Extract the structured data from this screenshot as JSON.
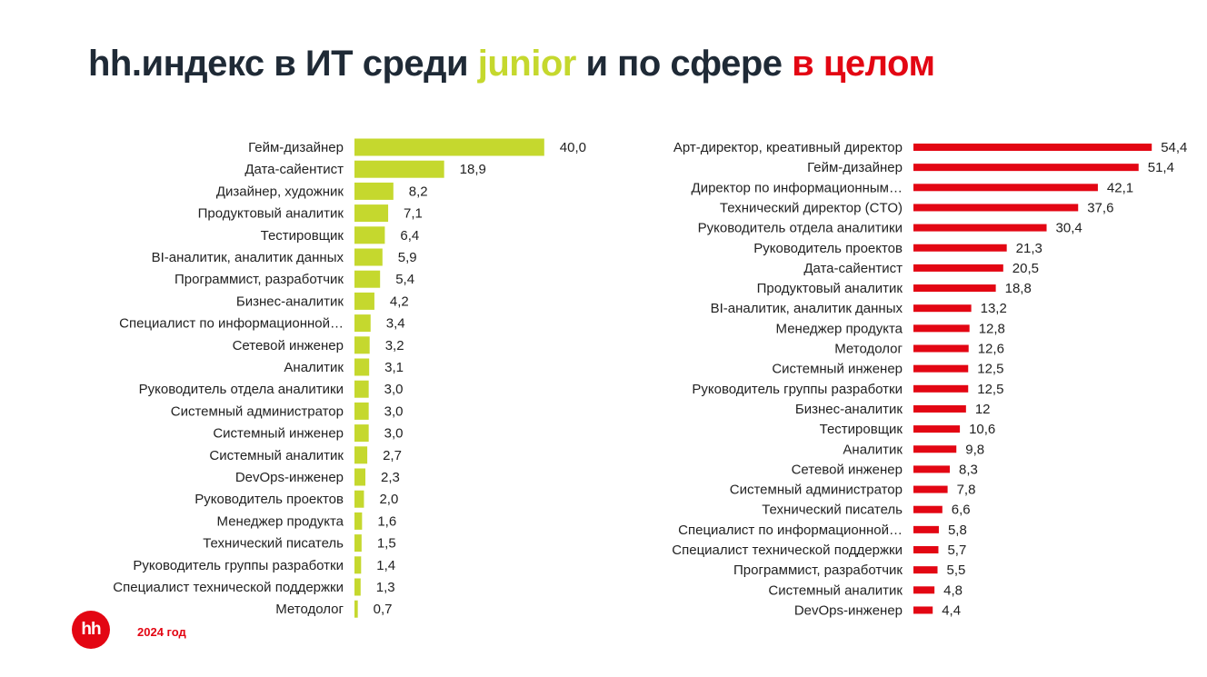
{
  "title": {
    "part1": "hh.индекс в ИТ среди ",
    "part2": "junior",
    "part3": " и по сфере ",
    "part4": "в целом"
  },
  "colors": {
    "junior": "#c5d82e",
    "whole": "#e30613",
    "title": "#1f2a36"
  },
  "footer": {
    "logo_text": "hh",
    "year": "2024 год"
  },
  "chart_data": [
    {
      "type": "bar",
      "orientation": "horizontal",
      "color": "#c5d82e",
      "categories": [
        "Гейм-дизайнер",
        "Дата-сайентист",
        "Дизайнер, художник",
        "Продуктовый аналитик",
        "Тестировщик",
        "BI-аналитик, аналитик данных",
        "Программист, разработчик",
        "Бизнес-аналитик",
        "Специалист по информационной…",
        "Сетевой инженер",
        "Аналитик",
        "Руководитель отдела аналитики",
        "Системный администратор",
        "Системный инженер",
        "Системный аналитик",
        "DevOps-инженер",
        "Руководитель проектов",
        "Менеджер продукта",
        "Технический писатель",
        "Руководитель группы разработки",
        "Специалист технической поддержки",
        "Методолог"
      ],
      "values": [
        40.0,
        18.9,
        8.2,
        7.1,
        6.4,
        5.9,
        5.4,
        4.2,
        3.4,
        3.2,
        3.1,
        3.0,
        3.0,
        3.0,
        2.7,
        2.3,
        2.0,
        1.6,
        1.5,
        1.4,
        1.3,
        0.7
      ],
      "value_labels": [
        "40,0",
        "18,9",
        "8,2",
        "7,1",
        "6,4",
        "5,9",
        "5,4",
        "4,2",
        "3,4",
        "3,2",
        "3,1",
        "3,0",
        "3,0",
        "3,0",
        "2,7",
        "2,3",
        "2,0",
        "1,6",
        "1,5",
        "1,4",
        "1,3",
        "0,7"
      ]
    },
    {
      "type": "bar",
      "orientation": "horizontal",
      "color": "#e30613",
      "categories": [
        "Арт-директор, креативный директор",
        "Гейм-дизайнер",
        "Директор по информационным…",
        "Технический директор (CTO)",
        "Руководитель отдела аналитики",
        "Руководитель проектов",
        "Дата-сайентист",
        "Продуктовый аналитик",
        "BI-аналитик, аналитик данных",
        "Менеджер продукта",
        "Методолог",
        "Системный инженер",
        "Руководитель группы разработки",
        "Бизнес-аналитик",
        "Тестировщик",
        "Аналитик",
        "Сетевой инженер",
        "Системный администратор",
        "Технический писатель",
        "Специалист по информационной…",
        "Специалист технической поддержки",
        "Программист, разработчик",
        "Системный аналитик",
        "DevOps-инженер"
      ],
      "values": [
        54.4,
        51.4,
        42.1,
        37.6,
        30.4,
        21.3,
        20.5,
        18.8,
        13.2,
        12.8,
        12.6,
        12.5,
        12.5,
        12,
        10.6,
        9.8,
        8.3,
        7.8,
        6.6,
        5.8,
        5.7,
        5.5,
        4.8,
        4.4
      ],
      "value_labels": [
        "54,4",
        "51,4",
        "42,1",
        "37,6",
        "30,4",
        "21,3",
        "20,5",
        "18,8",
        "13,2",
        "12,8",
        "12,6",
        "12,5",
        "12,5",
        "12",
        "10,6",
        "9,8",
        "8,3",
        "7,8",
        "6,6",
        "5,8",
        "5,7",
        "5,5",
        "4,8",
        "4,4"
      ]
    }
  ]
}
